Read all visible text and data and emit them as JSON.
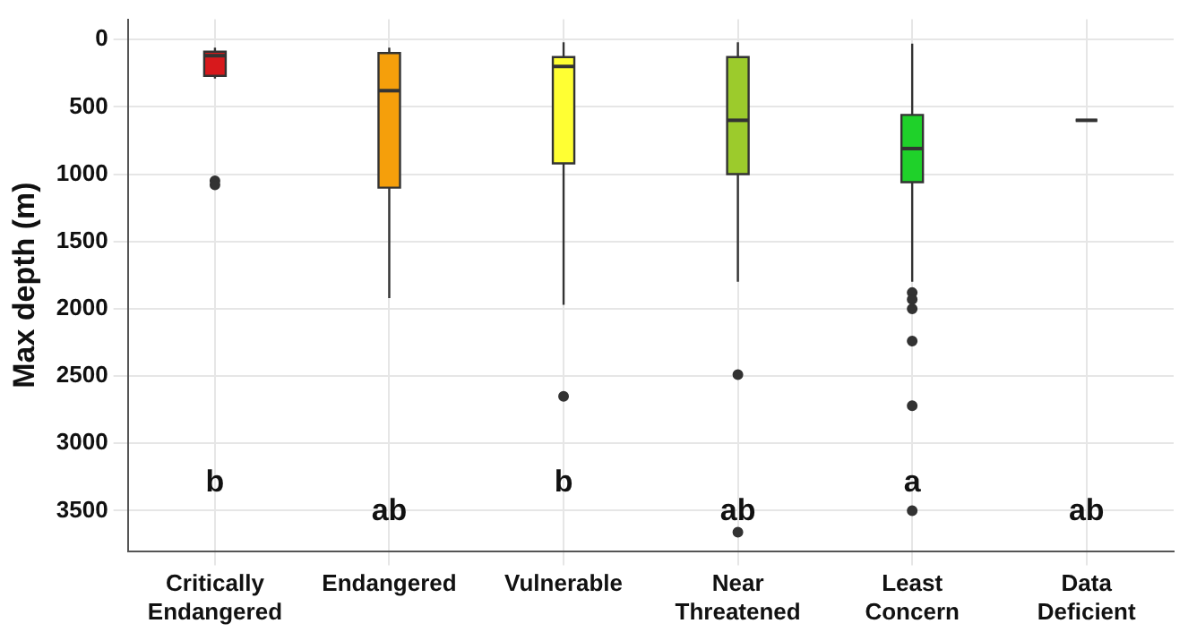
{
  "chart_data": {
    "type": "box",
    "ylabel": "Max depth (m)",
    "categories": [
      "Critically Endangered",
      "Endangered",
      "Vulnerable",
      "Near Threatened",
      "Least Concern",
      "Data Deficient"
    ],
    "boxes": [
      {
        "low": 60,
        "q1": 90,
        "median": 120,
        "q3": 270,
        "high": 290,
        "outliers": [
          1050,
          1080
        ]
      },
      {
        "low": 60,
        "q1": 100,
        "median": 380,
        "q3": 1100,
        "high": 1920
      },
      {
        "low": 20,
        "q1": 130,
        "median": 200,
        "q3": 920,
        "high": 1970,
        "outliers": [
          2650
        ]
      },
      {
        "low": 20,
        "q1": 130,
        "median": 600,
        "q3": 1000,
        "high": 1800,
        "outliers": [
          2490,
          3660
        ]
      },
      {
        "low": 30,
        "q1": 560,
        "median": 810,
        "q3": 1060,
        "high": 1800,
        "outliers": [
          1880,
          1930,
          2000,
          2240,
          2720,
          3500
        ]
      },
      {
        "low": 600,
        "q1": 600,
        "median": 600,
        "q3": 600,
        "high": 600
      }
    ],
    "colors": [
      "#d7191c",
      "#f59f0b",
      "#ffff33",
      "#9ccb2c",
      "#1fd12a",
      "#333333"
    ],
    "ylim": [
      3800,
      -150
    ],
    "yticks": [
      0,
      500,
      1000,
      1500,
      2000,
      2500,
      3000,
      3500
    ],
    "grid": true,
    "annotations": [
      "b",
      "ab",
      "b",
      "ab",
      "a",
      "ab"
    ]
  }
}
